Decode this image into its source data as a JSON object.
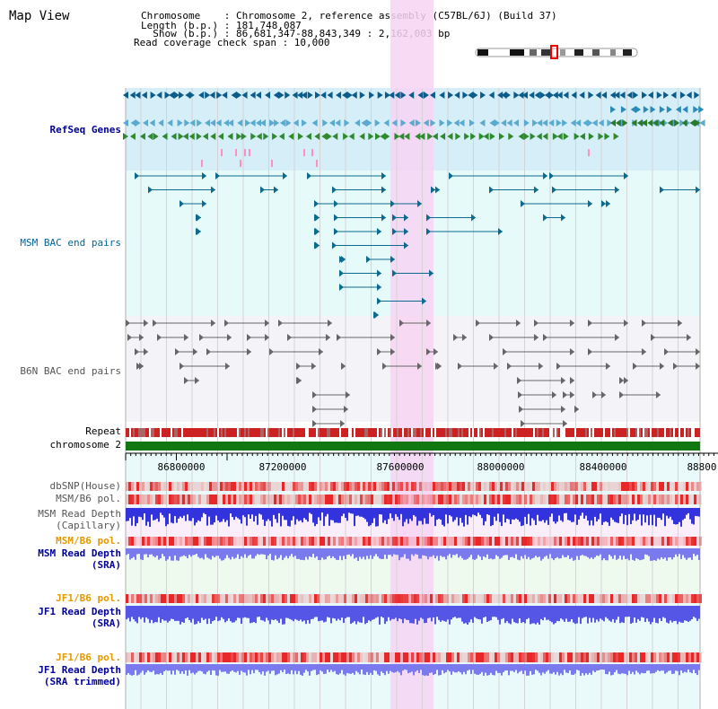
{
  "header": {
    "title": "Map View",
    "info_lines": [
      "Chromosome    : Chromosome 2, reference assembly (C57BL/6J) (Build 37)",
      "Length (b.p.) : 181,748,087",
      "  Show (b.p.) : 86,681,347-88,843,349 : 2,162,003 bp",
      "Read coverage check span : 10,000"
    ]
  },
  "tracks": {
    "refseq": "RefSeq Genes",
    "msm_bac": "MSM BAC end pairs",
    "b6n_bac": "B6N BAC end pairs",
    "repeat": "Repeat",
    "chromosome": "chromosome 2",
    "dbsnp": "dbSNP(House)",
    "msm_b6_pol_1": "MSM/B6 pol.",
    "msm_read_depth_cap_1": "MSM Read Depth",
    "msm_read_depth_cap_2": "(Capillary)",
    "msm_b6_pol_2": "MSM/B6 pol.",
    "msm_read_depth_sra_1": "MSM Read Depth",
    "msm_read_depth_sra_2": "(SRA)",
    "jf1_b6_pol_1": "JF1/B6 pol.",
    "jf1_read_depth_sra_1": "JF1 Read Depth",
    "jf1_read_depth_sra_2": "(SRA)",
    "jf1_b6_pol_2": "JF1/B6 pol.",
    "jf1_read_depth_trim_1": "JF1 Read Depth",
    "jf1_read_depth_trim_2": "(SRA trimmed)"
  },
  "axis": {
    "ticks": [
      "86800000",
      "87200000",
      "87600000",
      "88000000",
      "88400000",
      "88800"
    ]
  },
  "colors": {
    "highlight": "#f7d4f3",
    "repeat": "#cc2222",
    "chromosome": "#117711",
    "refseq_bg": "#d6eef8",
    "bac_bg": "#e6fafa",
    "depth_blue": "#3333dd",
    "pol_red": "#e83333"
  }
}
